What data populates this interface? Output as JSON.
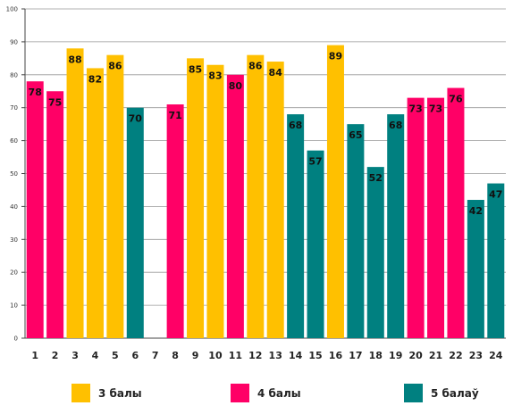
{
  "chart_data": {
    "type": "bar",
    "categories": [
      "1",
      "2",
      "3",
      "4",
      "5",
      "6",
      "7",
      "8",
      "9",
      "10",
      "11",
      "12",
      "13",
      "14",
      "15",
      "16",
      "17",
      "18",
      "19",
      "20",
      "21",
      "22",
      "23",
      "24"
    ],
    "values": [
      78,
      75,
      88,
      82,
      86,
      70,
      null,
      71,
      85,
      83,
      80,
      86,
      84,
      68,
      57,
      89,
      65,
      52,
      68,
      73,
      73,
      76,
      42,
      47
    ],
    "groups": [
      4,
      4,
      3,
      3,
      3,
      5,
      null,
      4,
      3,
      3,
      4,
      3,
      3,
      5,
      5,
      3,
      5,
      5,
      5,
      4,
      4,
      4,
      5,
      5
    ],
    "ylim": [
      0,
      100
    ],
    "yticks": [
      0,
      10,
      20,
      30,
      40,
      50,
      60,
      70,
      80,
      90,
      100
    ],
    "grid": true,
    "legend": [
      {
        "key": 3,
        "label": "3 балы",
        "color": "#FFC000"
      },
      {
        "key": 4,
        "label": "4 балы",
        "color": "#FF0066"
      },
      {
        "key": 5,
        "label": "5 балаў",
        "color": "#008080"
      }
    ],
    "legend_position": "bottom"
  }
}
